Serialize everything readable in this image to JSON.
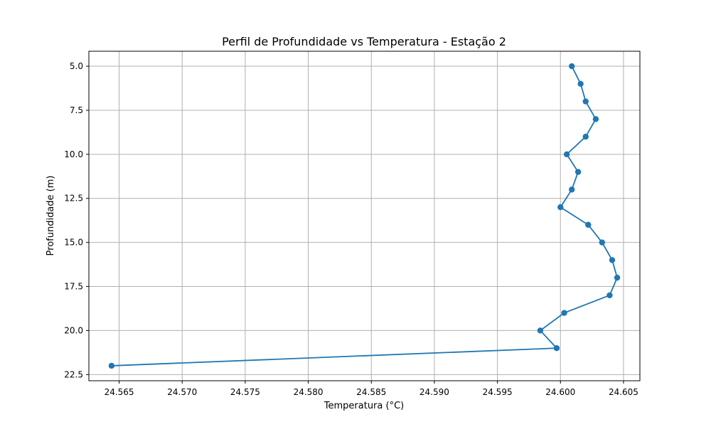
{
  "chart_data": {
    "type": "line",
    "title": "Perfil de Profundidade vs Temperatura - Estação 2",
    "xlabel": "Temperatura (°C)",
    "ylabel": "Profundidade (m)",
    "xlim": [
      24.5626,
      24.6063
    ],
    "ylim": [
      22.85,
      4.15
    ],
    "y_inverted": true,
    "grid": true,
    "xticks": [
      "24.565",
      "24.570",
      "24.575",
      "24.580",
      "24.585",
      "24.590",
      "24.595",
      "24.600",
      "24.605"
    ],
    "yticks": [
      "5.0",
      "7.5",
      "10.0",
      "12.5",
      "15.0",
      "17.5",
      "20.0",
      "22.5"
    ],
    "line_color": "#1f77b4",
    "series": [
      {
        "x": [
          24.6009,
          24.6016,
          24.602,
          24.6028,
          24.602,
          24.6005,
          24.6014,
          24.6009,
          24.6,
          24.6022,
          24.6033,
          24.6041,
          24.6045,
          24.6039,
          24.6003,
          24.5984,
          24.5997,
          24.5644
        ],
        "y": [
          5,
          6,
          7,
          8,
          9,
          10,
          11,
          12,
          13,
          14,
          15,
          16,
          17,
          18,
          19,
          20,
          21,
          22
        ]
      }
    ]
  }
}
